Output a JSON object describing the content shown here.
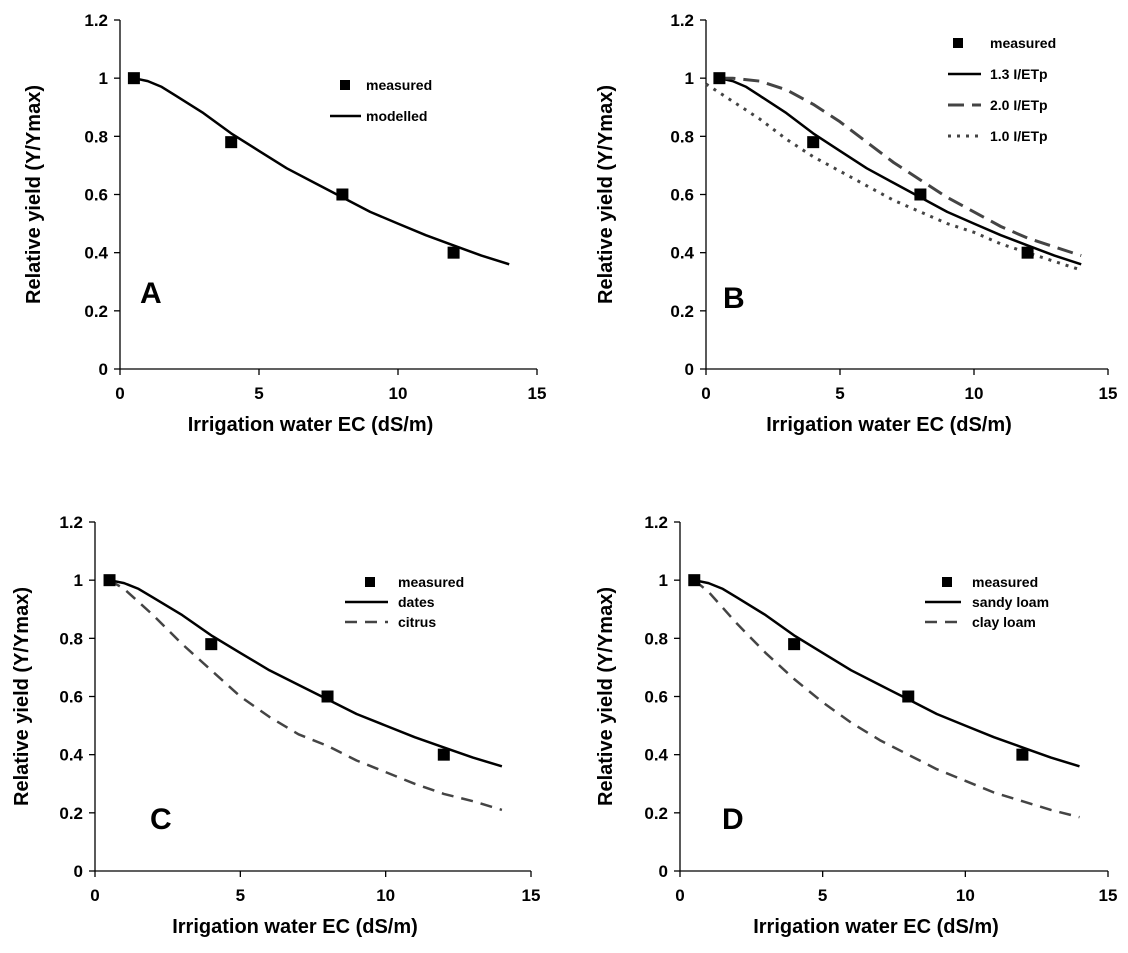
{
  "colors": {
    "ink": "#000000",
    "dashed_series": "#444444",
    "background": "#ffffff"
  },
  "chart_data": [
    {
      "type": "line",
      "panel_label": "A",
      "xlabel": "Irrigation water EC (dS/m)",
      "ylabel": "Relative yield (Y/Ymax)",
      "xlim": [
        0,
        15
      ],
      "ylim": [
        0,
        1.2
      ],
      "xticks": [
        "0",
        "5",
        "10",
        "15"
      ],
      "yticks": [
        "0",
        "0.2",
        "0.4",
        "0.6",
        "0.8",
        "1",
        "1.2"
      ],
      "grid": false,
      "legend_position": "top-right",
      "measured": {
        "name": "measured",
        "x": [
          0.5,
          4,
          8,
          12
        ],
        "y": [
          1.0,
          0.78,
          0.6,
          0.4
        ]
      },
      "series": [
        {
          "name": "modelled",
          "style": "solid",
          "x": [
            0.5,
            1,
            1.5,
            2,
            3,
            4,
            5,
            6,
            7,
            8,
            9,
            10,
            11,
            12,
            13,
            14
          ],
          "y": [
            1.0,
            0.99,
            0.97,
            0.94,
            0.88,
            0.81,
            0.75,
            0.69,
            0.64,
            0.59,
            0.54,
            0.5,
            0.46,
            0.425,
            0.39,
            0.36
          ]
        }
      ]
    },
    {
      "type": "line",
      "panel_label": "B",
      "xlabel": "Irrigation water EC (dS/m)",
      "ylabel": "Relative yield (Y/Ymax)",
      "xlim": [
        0,
        15
      ],
      "ylim": [
        0,
        1.2
      ],
      "xticks": [
        "0",
        "5",
        "10",
        "15"
      ],
      "yticks": [
        "0",
        "0.2",
        "0.4",
        "0.6",
        "0.8",
        "1",
        "1.2"
      ],
      "grid": false,
      "legend_position": "top-right",
      "measured": {
        "name": "measured",
        "x": [
          0.5,
          4,
          8,
          12
        ],
        "y": [
          1.0,
          0.78,
          0.6,
          0.4
        ]
      },
      "series": [
        {
          "name": "1.3 I/ETp",
          "style": "solid",
          "x": [
            0.5,
            1,
            1.5,
            2,
            3,
            4,
            5,
            6,
            7,
            8,
            9,
            10,
            11,
            12,
            13,
            14
          ],
          "y": [
            1.0,
            0.99,
            0.97,
            0.94,
            0.88,
            0.81,
            0.75,
            0.69,
            0.64,
            0.59,
            0.54,
            0.5,
            0.46,
            0.425,
            0.39,
            0.36
          ]
        },
        {
          "name": "2.0 I/ETp",
          "style": "longdash",
          "x": [
            0.5,
            1,
            2,
            3,
            4,
            5,
            6,
            7,
            8,
            9,
            10,
            11,
            12,
            13,
            14
          ],
          "y": [
            1.0,
            1.0,
            0.99,
            0.96,
            0.91,
            0.85,
            0.78,
            0.71,
            0.65,
            0.59,
            0.54,
            0.49,
            0.45,
            0.42,
            0.39
          ]
        },
        {
          "name": "1.0 I/ETp",
          "style": "dotted",
          "x": [
            0,
            0.5,
            1,
            2,
            3,
            4,
            5,
            6,
            7,
            8,
            9,
            10,
            11,
            12,
            13,
            14
          ],
          "y": [
            0.98,
            0.95,
            0.92,
            0.86,
            0.79,
            0.73,
            0.68,
            0.63,
            0.58,
            0.54,
            0.5,
            0.47,
            0.43,
            0.4,
            0.37,
            0.34
          ]
        }
      ]
    },
    {
      "type": "line",
      "panel_label": "C",
      "xlabel": "Irrigation water EC (dS/m)",
      "ylabel": "Relative yield (Y/Ymax)",
      "xlim": [
        0,
        15
      ],
      "ylim": [
        0,
        1.2
      ],
      "xticks": [
        "0",
        "5",
        "10",
        "15"
      ],
      "yticks": [
        "0",
        "0.2",
        "0.4",
        "0.6",
        "0.8",
        "1",
        "1.2"
      ],
      "grid": false,
      "legend_position": "top-right",
      "measured": {
        "name": "measured",
        "x": [
          0.5,
          4,
          8,
          12
        ],
        "y": [
          1.0,
          0.78,
          0.6,
          0.4
        ]
      },
      "series": [
        {
          "name": "dates",
          "style": "solid",
          "x": [
            0.5,
            1,
            1.5,
            2,
            3,
            4,
            5,
            6,
            7,
            8,
            9,
            10,
            11,
            12,
            13,
            14
          ],
          "y": [
            1.0,
            0.99,
            0.97,
            0.94,
            0.88,
            0.81,
            0.75,
            0.69,
            0.64,
            0.59,
            0.54,
            0.5,
            0.46,
            0.425,
            0.39,
            0.36
          ]
        },
        {
          "name": "citrus",
          "style": "dash",
          "x": [
            0.5,
            1,
            2,
            3,
            4,
            5,
            6,
            7,
            8,
            9,
            10,
            11,
            12,
            13,
            14
          ],
          "y": [
            1.0,
            0.97,
            0.88,
            0.78,
            0.69,
            0.6,
            0.53,
            0.47,
            0.43,
            0.38,
            0.34,
            0.3,
            0.265,
            0.24,
            0.21
          ]
        }
      ]
    },
    {
      "type": "line",
      "panel_label": "D",
      "xlabel": "Irrigation water EC (dS/m)",
      "ylabel": "Relative yield (Y/Ymax)",
      "xlim": [
        0,
        15
      ],
      "ylim": [
        0,
        1.2
      ],
      "xticks": [
        "0",
        "5",
        "10",
        "15"
      ],
      "yticks": [
        "0",
        "0.2",
        "0.4",
        "0.6",
        "0.8",
        "1",
        "1.2"
      ],
      "grid": false,
      "legend_position": "top-right",
      "measured": {
        "name": "measured",
        "x": [
          0.5,
          4,
          8,
          12
        ],
        "y": [
          1.0,
          0.78,
          0.6,
          0.4
        ]
      },
      "series": [
        {
          "name": "sandy loam",
          "style": "solid",
          "x": [
            0.5,
            1,
            1.5,
            2,
            3,
            4,
            5,
            6,
            7,
            8,
            9,
            10,
            11,
            12,
            13,
            14
          ],
          "y": [
            1.0,
            0.99,
            0.97,
            0.94,
            0.88,
            0.81,
            0.75,
            0.69,
            0.64,
            0.59,
            0.54,
            0.5,
            0.46,
            0.425,
            0.39,
            0.36
          ]
        },
        {
          "name": "clay loam",
          "style": "dash",
          "x": [
            0.5,
            1,
            2,
            3,
            4,
            5,
            6,
            7,
            8,
            9,
            10,
            11,
            12,
            13,
            14
          ],
          "y": [
            1.0,
            0.96,
            0.85,
            0.75,
            0.66,
            0.58,
            0.51,
            0.45,
            0.4,
            0.35,
            0.31,
            0.27,
            0.24,
            0.21,
            0.185
          ]
        }
      ]
    }
  ]
}
